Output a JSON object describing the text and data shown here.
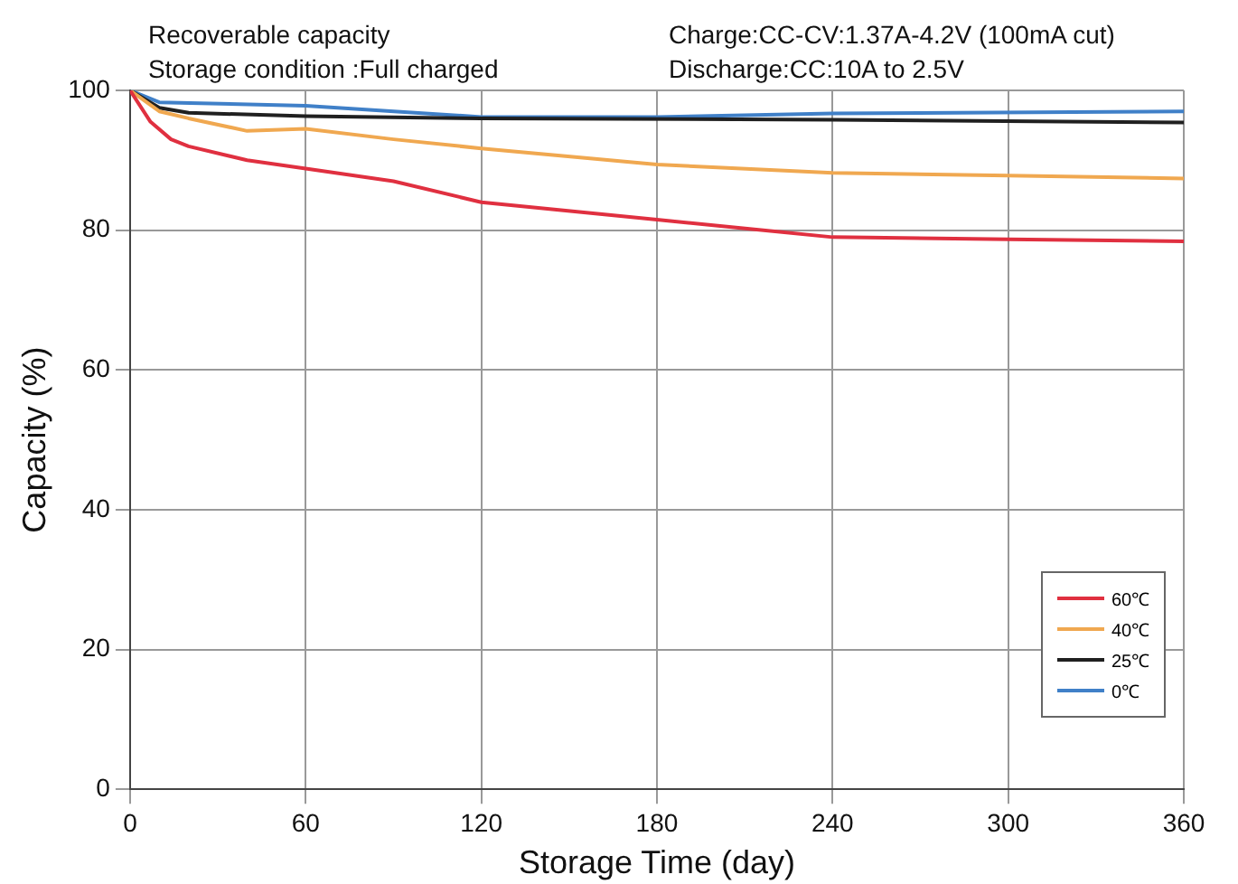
{
  "chart_data": {
    "type": "line",
    "xlabel": "Storage Time (day)",
    "ylabel": "Capacity (%)",
    "annotations": [
      "Recoverable capacity",
      "Storage condition :Full charged",
      "Charge:CC-CV:1.37A-4.2V (100mA cut)",
      "Discharge:CC:10A to 2.5V"
    ],
    "xlim": [
      0,
      360
    ],
    "xticks": [
      0,
      60,
      120,
      180,
      240,
      300,
      360
    ],
    "ylim": [
      0,
      100
    ],
    "yticks": [
      0,
      20,
      40,
      60,
      80,
      100
    ],
    "grid": true,
    "legend": "bottom right",
    "marker": "none",
    "line_style": "solid",
    "series": [
      {
        "name": "60℃",
        "color": "#e03040",
        "x": [
          0,
          7,
          14,
          20,
          40,
          60,
          90,
          120,
          180,
          240,
          300,
          360
        ],
        "values": [
          100,
          95.5,
          93,
          92,
          90,
          88.8,
          87,
          84,
          81.5,
          79,
          78.7,
          78.4
        ]
      },
      {
        "name": "40℃",
        "color": "#f0a850",
        "x": [
          0,
          10,
          20,
          40,
          60,
          90,
          120,
          180,
          240,
          300,
          360
        ],
        "values": [
          100,
          97,
          96,
          94.2,
          94.5,
          93,
          91.7,
          89.4,
          88.2,
          87.8,
          87.4
        ]
      },
      {
        "name": "25℃",
        "color": "#202020",
        "x": [
          0,
          10,
          20,
          60,
          120,
          240,
          360
        ],
        "values": [
          100,
          97.5,
          96.8,
          96.3,
          96,
          95.8,
          95.4
        ]
      },
      {
        "name": "0℃",
        "color": "#4080c8",
        "x": [
          0,
          10,
          60,
          120,
          180,
          240,
          360
        ],
        "values": [
          100,
          98.3,
          97.8,
          96.2,
          96.2,
          96.7,
          97
        ]
      }
    ]
  }
}
